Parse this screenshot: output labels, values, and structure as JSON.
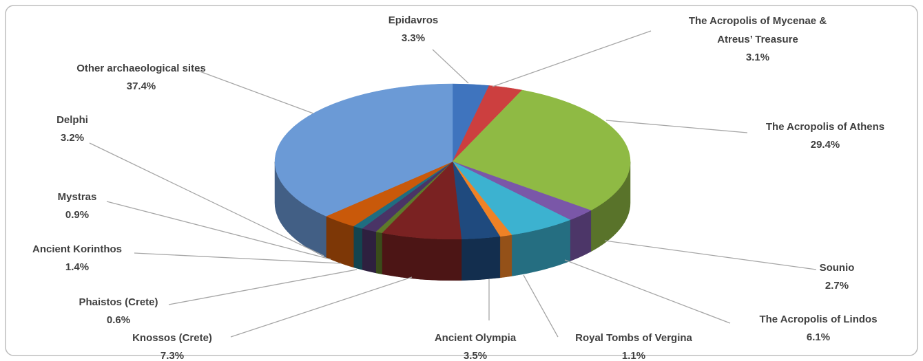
{
  "chart_data": {
    "type": "pie",
    "categories": [
      "Epidavros",
      "The Acropolis of Mycenae & Atreus’ Treasure",
      "The Acropolis of Athens",
      "Sounio",
      "The Acropolis of Lindos",
      "Royal Tombs of Vergina",
      "Ancient Olympia",
      "Knossos (Crete)",
      "Phaistos (Crete)",
      "Ancient Korinthos",
      "Mystras",
      "Delphi",
      "Other archaeological sites"
    ],
    "values": [
      3.3,
      3.1,
      29.4,
      2.7,
      6.1,
      1.1,
      3.5,
      7.3,
      0.6,
      1.4,
      0.9,
      3.2,
      37.4
    ],
    "value_labels": [
      "3.3%",
      "3.1%",
      "29.4%",
      "2.7%",
      "6.1%",
      "1.1%",
      "3.5%",
      "7.3%",
      "0.6%",
      "1.4%",
      "0.9%",
      "3.2%",
      "37.4%"
    ],
    "colors": [
      "#3f74be",
      "#cc3f3f",
      "#8fba44",
      "#7a57a8",
      "#3cb2d0",
      "#ef8226",
      "#1f4a7e",
      "#7a2222",
      "#5e7a2a",
      "#4a3466",
      "#1f6d80",
      "#c9590a",
      "#6b9ad6"
    ]
  }
}
